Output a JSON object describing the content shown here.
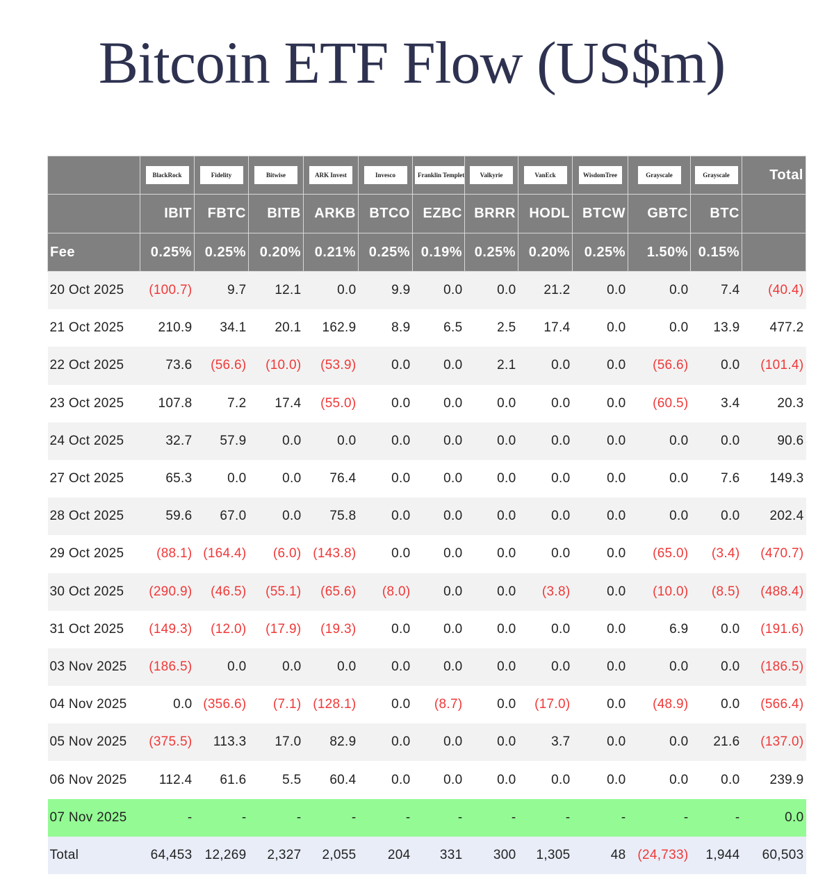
{
  "title": "Bitcoin ETF Flow (US$m)",
  "colors": {
    "header_bg": "#808080",
    "negative": "#f03838",
    "today_row": "#94fb94",
    "total_row": "#e9edf8"
  },
  "issuers": [
    "BlackRock",
    "Fidelity",
    "Bitwise",
    "ARK Invest",
    "Invesco",
    "Franklin Templeton",
    "Valkyrie",
    "VanEck",
    "WisdomTree",
    "Grayscale",
    "Grayscale"
  ],
  "total_header": "Total",
  "fee_label": "Fee",
  "tickers": [
    "IBIT",
    "FBTC",
    "BITB",
    "ARKB",
    "BTCO",
    "EZBC",
    "BRRR",
    "HODL",
    "BTCW",
    "GBTC",
    "BTC"
  ],
  "fees": [
    "0.25%",
    "0.25%",
    "0.20%",
    "0.21%",
    "0.25%",
    "0.19%",
    "0.25%",
    "0.20%",
    "0.25%",
    "1.50%",
    "0.15%"
  ],
  "rows": [
    {
      "date": "20 Oct 2025",
      "values": [
        "(100.7)",
        "9.7",
        "12.1",
        "0.0",
        "9.9",
        "0.0",
        "0.0",
        "21.2",
        "0.0",
        "0.0",
        "7.4",
        "(40.4)"
      ]
    },
    {
      "date": "21 Oct 2025",
      "values": [
        "210.9",
        "34.1",
        "20.1",
        "162.9",
        "8.9",
        "6.5",
        "2.5",
        "17.4",
        "0.0",
        "0.0",
        "13.9",
        "477.2"
      ]
    },
    {
      "date": "22 Oct 2025",
      "values": [
        "73.6",
        "(56.6)",
        "(10.0)",
        "(53.9)",
        "0.0",
        "0.0",
        "2.1",
        "0.0",
        "0.0",
        "(56.6)",
        "0.0",
        "(101.4)"
      ]
    },
    {
      "date": "23 Oct 2025",
      "values": [
        "107.8",
        "7.2",
        "17.4",
        "(55.0)",
        "0.0",
        "0.0",
        "0.0",
        "0.0",
        "0.0",
        "(60.5)",
        "3.4",
        "20.3"
      ]
    },
    {
      "date": "24 Oct 2025",
      "values": [
        "32.7",
        "57.9",
        "0.0",
        "0.0",
        "0.0",
        "0.0",
        "0.0",
        "0.0",
        "0.0",
        "0.0",
        "0.0",
        "90.6"
      ]
    },
    {
      "date": "27 Oct 2025",
      "values": [
        "65.3",
        "0.0",
        "0.0",
        "76.4",
        "0.0",
        "0.0",
        "0.0",
        "0.0",
        "0.0",
        "0.0",
        "7.6",
        "149.3"
      ]
    },
    {
      "date": "28 Oct 2025",
      "values": [
        "59.6",
        "67.0",
        "0.0",
        "75.8",
        "0.0",
        "0.0",
        "0.0",
        "0.0",
        "0.0",
        "0.0",
        "0.0",
        "202.4"
      ]
    },
    {
      "date": "29 Oct 2025",
      "values": [
        "(88.1)",
        "(164.4)",
        "(6.0)",
        "(143.8)",
        "0.0",
        "0.0",
        "0.0",
        "0.0",
        "0.0",
        "(65.0)",
        "(3.4)",
        "(470.7)"
      ]
    },
    {
      "date": "30 Oct 2025",
      "values": [
        "(290.9)",
        "(46.5)",
        "(55.1)",
        "(65.6)",
        "(8.0)",
        "0.0",
        "0.0",
        "(3.8)",
        "0.0",
        "(10.0)",
        "(8.5)",
        "(488.4)"
      ]
    },
    {
      "date": "31 Oct 2025",
      "values": [
        "(149.3)",
        "(12.0)",
        "(17.9)",
        "(19.3)",
        "0.0",
        "0.0",
        "0.0",
        "0.0",
        "0.0",
        "6.9",
        "0.0",
        "(191.6)"
      ]
    },
    {
      "date": "03 Nov 2025",
      "values": [
        "(186.5)",
        "0.0",
        "0.0",
        "0.0",
        "0.0",
        "0.0",
        "0.0",
        "0.0",
        "0.0",
        "0.0",
        "0.0",
        "(186.5)"
      ]
    },
    {
      "date": "04 Nov 2025",
      "values": [
        "0.0",
        "(356.6)",
        "(7.1)",
        "(128.1)",
        "0.0",
        "(8.7)",
        "0.0",
        "(17.0)",
        "0.0",
        "(48.9)",
        "0.0",
        "(566.4)"
      ]
    },
    {
      "date": "05 Nov 2025",
      "values": [
        "(375.5)",
        "113.3",
        "17.0",
        "82.9",
        "0.0",
        "0.0",
        "0.0",
        "3.7",
        "0.0",
        "0.0",
        "21.6",
        "(137.0)"
      ]
    },
    {
      "date": "06 Nov 2025",
      "values": [
        "112.4",
        "61.6",
        "5.5",
        "60.4",
        "0.0",
        "0.0",
        "0.0",
        "0.0",
        "0.0",
        "0.0",
        "0.0",
        "239.9"
      ]
    }
  ],
  "today": {
    "date": "07 Nov 2025",
    "values": [
      "-",
      "-",
      "-",
      "-",
      "-",
      "-",
      "-",
      "-",
      "-",
      "-",
      "-",
      "0.0"
    ]
  },
  "total": {
    "label": "Total",
    "values": [
      "64,453",
      "12,269",
      "2,327",
      "2,055",
      "204",
      "331",
      "300",
      "1,305",
      "48",
      "(24,733)",
      "1,944",
      "60,503"
    ]
  }
}
